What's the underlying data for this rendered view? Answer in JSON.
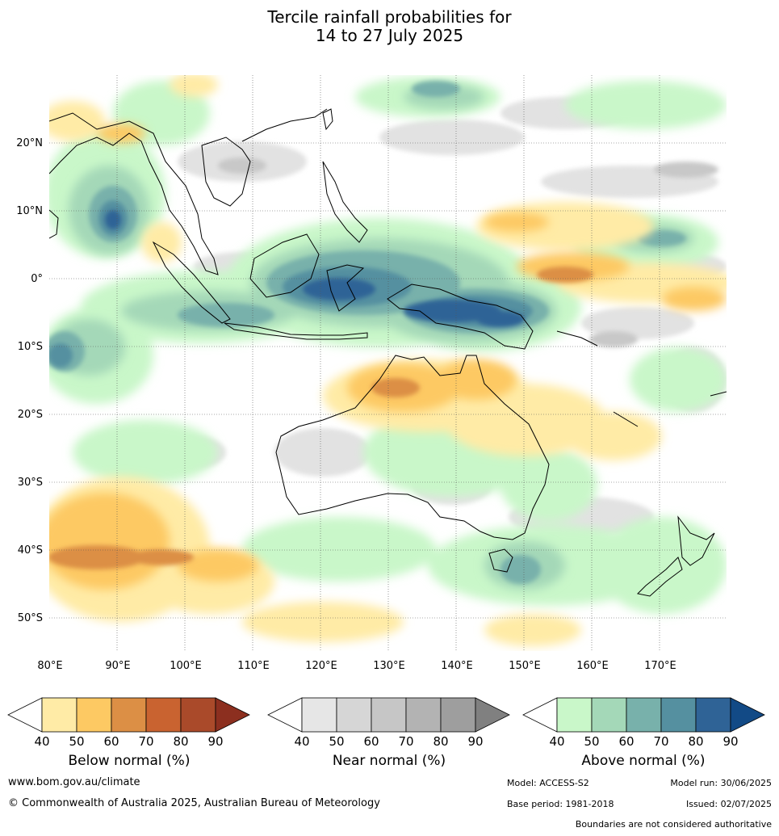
{
  "title": {
    "line1": "Tercile rainfall probabilities for",
    "line2": "14 to 27 July 2025"
  },
  "map": {
    "lat_labels": [
      "20°N",
      "10°N",
      "0°",
      "10°S",
      "20°S",
      "30°S",
      "40°S",
      "50°S"
    ],
    "lon_labels": [
      "80°E",
      "90°E",
      "100°E",
      "110°E",
      "120°E",
      "130°E",
      "140°E",
      "150°E",
      "160°E",
      "170°E"
    ],
    "extent": {
      "lon": [
        80,
        180
      ],
      "lat": [
        -55,
        30
      ]
    }
  },
  "colorbars": [
    {
      "label": "Below normal (%)",
      "ticks": [
        "40",
        "50",
        "60",
        "70",
        "80",
        "90"
      ],
      "colors": [
        "#ffeba6",
        "#fdc963",
        "#dc8f45",
        "#c96330",
        "#aa4a2a",
        "#8c2f1f"
      ]
    },
    {
      "label": "Near normal (%)",
      "ticks": [
        "40",
        "50",
        "60",
        "70",
        "80",
        "90"
      ],
      "colors": [
        "#e6e6e6",
        "#d6d6d6",
        "#c6c6c6",
        "#b3b3b3",
        "#9e9e9e",
        "#808080"
      ]
    },
    {
      "label": "Above normal (%)",
      "ticks": [
        "40",
        "50",
        "60",
        "70",
        "80",
        "90"
      ],
      "colors": [
        "#c9f7c9",
        "#a4d8b8",
        "#78b1ab",
        "#5590a0",
        "#2f6396",
        "#124a86"
      ]
    }
  ],
  "footer": {
    "url": "www.bom.gov.au/climate",
    "copyright": "© Commonwealth of Australia 2025, Australian Bureau of Meteorology",
    "model": "Model: ACCESS-S2",
    "model_run": "Model run: 30/06/2025",
    "base_period": "Base period: 1981-2018",
    "issued": "Issued: 02/07/2025",
    "disclaimer": "Boundaries are not considered authoritative"
  }
}
